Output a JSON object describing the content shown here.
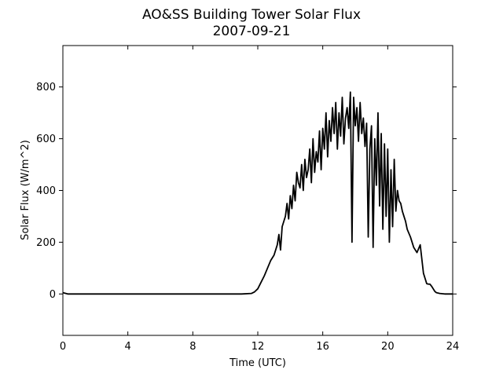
{
  "chart_data": {
    "type": "line",
    "title": "AO&SS Building Tower Solar Flux",
    "subtitle": "2007-09-21",
    "xlabel": "Time (UTC)",
    "ylabel": "Solar Flux (W/m^2)",
    "xlim": [
      0,
      24
    ],
    "ylim": [
      -160,
      960
    ],
    "xticks": [
      0,
      4,
      8,
      12,
      16,
      20,
      24
    ],
    "yticks": [
      0,
      200,
      400,
      600,
      800
    ],
    "grid": false,
    "line_color": "#000000",
    "series": [
      {
        "x": [
          0,
          0.3,
          1,
          4,
          8,
          11,
          11.6,
          11.8,
          12.0,
          12.2,
          12.4,
          12.6,
          12.8,
          13.0,
          13.2,
          13.3,
          13.4,
          13.5,
          13.6,
          13.7,
          13.8,
          13.9,
          14.0,
          14.1,
          14.2,
          14.3,
          14.4,
          14.5,
          14.6,
          14.7,
          14.8,
          14.9,
          15.0,
          15.1,
          15.2,
          15.3,
          15.4,
          15.5,
          15.6,
          15.7,
          15.8,
          15.9,
          16.0,
          16.1,
          16.2,
          16.3,
          16.4,
          16.5,
          16.6,
          16.7,
          16.8,
          16.9,
          17.0,
          17.1,
          17.2,
          17.3,
          17.4,
          17.5,
          17.6,
          17.7,
          17.8,
          17.9,
          18.0,
          18.1,
          18.2,
          18.3,
          18.4,
          18.5,
          18.6,
          18.7,
          18.8,
          18.9,
          19.0,
          19.1,
          19.2,
          19.3,
          19.4,
          19.5,
          19.6,
          19.7,
          19.8,
          19.9,
          20.0,
          20.1,
          20.2,
          20.3,
          20.4,
          20.5,
          20.6,
          20.7,
          20.8,
          20.9,
          21.0,
          21.1,
          21.2,
          21.4,
          21.6,
          21.8,
          22.0,
          22.2,
          22.4,
          22.5,
          22.6,
          22.7,
          22.8,
          22.9,
          23.0,
          23.2,
          23.5,
          23.8,
          24.0
        ],
        "y": [
          5,
          0,
          0,
          0,
          0,
          0,
          2,
          8,
          20,
          45,
          70,
          100,
          130,
          150,
          190,
          230,
          170,
          260,
          280,
          300,
          350,
          290,
          380,
          330,
          420,
          360,
          470,
          430,
          410,
          500,
          400,
          520,
          450,
          480,
          560,
          430,
          600,
          470,
          550,
          510,
          630,
          480,
          640,
          560,
          700,
          530,
          670,
          590,
          720,
          620,
          740,
          560,
          700,
          610,
          760,
          580,
          680,
          720,
          640,
          780,
          200,
          760,
          650,
          720,
          590,
          740,
          620,
          680,
          570,
          660,
          220,
          560,
          650,
          180,
          600,
          420,
          700,
          340,
          620,
          250,
          580,
          300,
          560,
          200,
          480,
          260,
          520,
          320,
          400,
          360,
          350,
          320,
          300,
          280,
          250,
          220,
          180,
          160,
          190,
          80,
          40,
          38,
          38,
          30,
          20,
          10,
          5,
          2,
          0,
          0,
          0
        ]
      }
    ]
  }
}
